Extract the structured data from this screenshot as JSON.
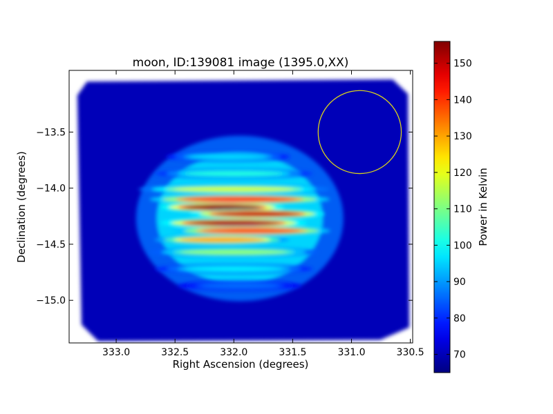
{
  "chart_data": {
    "type": "heatmap",
    "title": "moon, ID:139081 image (1395.0,XX)",
    "xlabel": "Right Ascension (degrees)",
    "ylabel": "Declination (degrees)",
    "xlim": [
      333.4,
      330.48
    ],
    "ylim": [
      -15.38,
      -12.95
    ],
    "x_ticks": [
      333.0,
      332.5,
      332.0,
      331.5,
      331.0,
      330.5
    ],
    "x_tick_labels": [
      "333.0",
      "332.5",
      "332.0",
      "331.5",
      "331.0",
      "330.5"
    ],
    "y_ticks": [
      -13.5,
      -14.0,
      -14.5,
      -15.0
    ],
    "y_tick_labels": [
      "−13.5",
      "−14.0",
      "−14.5",
      "−15.0"
    ],
    "colorbar": {
      "label": "Power in Kelvin",
      "min": 65,
      "max": 156,
      "ticks": [
        70,
        80,
        90,
        100,
        110,
        120,
        130,
        140,
        150
      ],
      "colormap": "jet"
    },
    "map": {
      "background_level": 70,
      "source_center": [
        331.95,
        -14.27
      ],
      "fringe_rows": [
        {
          "dec": -13.72,
          "ra_center": 332.05,
          "ra_halfwidth": 0.55,
          "peak": 96
        },
        {
          "dec": -13.87,
          "ra_center": 332.0,
          "ra_halfwidth": 0.7,
          "peak": 102
        },
        {
          "dec": -14.01,
          "ra_center": 332.0,
          "ra_halfwidth": 0.85,
          "peak": 118
        },
        {
          "dec": -14.1,
          "ra_center": 331.95,
          "ra_halfwidth": 0.8,
          "peak": 143
        },
        {
          "dec": -14.17,
          "ra_center": 332.1,
          "ra_halfwidth": 0.55,
          "peak": 156
        },
        {
          "dec": -14.23,
          "ra_center": 331.8,
          "ra_halfwidth": 0.6,
          "peak": 150
        },
        {
          "dec": -14.31,
          "ra_center": 332.0,
          "ra_halfwidth": 0.65,
          "peak": 153
        },
        {
          "dec": -14.38,
          "ra_center": 331.85,
          "ra_halfwidth": 0.7,
          "peak": 140
        },
        {
          "dec": -14.46,
          "ra_center": 332.1,
          "ra_halfwidth": 0.6,
          "peak": 130
        },
        {
          "dec": -14.57,
          "ra_center": 332.0,
          "ra_halfwidth": 0.75,
          "peak": 112
        },
        {
          "dec": -14.72,
          "ra_center": 332.0,
          "ra_halfwidth": 0.7,
          "peak": 98
        },
        {
          "dec": -14.87,
          "ra_center": 331.95,
          "ra_halfwidth": 0.55,
          "peak": 86
        }
      ]
    },
    "beam_circle": {
      "ra": 330.93,
      "dec": -13.5,
      "radius_deg": 0.37,
      "color": "#d9d21c"
    }
  }
}
